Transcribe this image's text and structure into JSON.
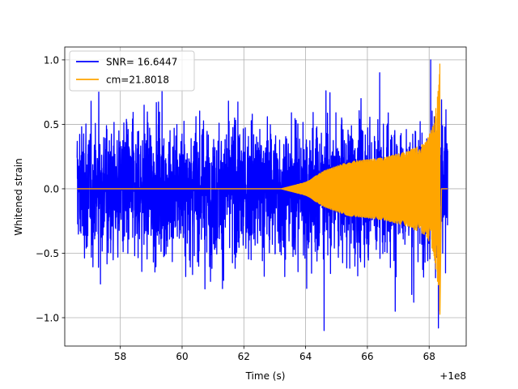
{
  "chart_data": {
    "type": "line",
    "title": "",
    "xlabel": "Time (s)",
    "ylabel": "Whitened strain",
    "x_offset_label": "+1e8",
    "xlim": [
      56.2,
      69.2
    ],
    "ylim": [
      -1.22,
      1.1
    ],
    "x_ticks": [
      58,
      60,
      62,
      64,
      66,
      68
    ],
    "y_ticks": [
      -1.0,
      -0.5,
      0.0,
      0.5,
      1.0
    ],
    "x_tick_labels": [
      "58",
      "60",
      "62",
      "64",
      "66",
      "68"
    ],
    "y_tick_labels": [
      "−1.0",
      "−0.5",
      "0.0",
      "0.5",
      "1.0"
    ],
    "grid": true,
    "legend_position": "top-left",
    "series": [
      {
        "name": "SNR= 16.6447",
        "color": "#0000ff",
        "style": "noisy whitened strain",
        "x_range": [
          56.6,
          68.6
        ],
        "typical_amplitude": 0.45,
        "peaks": [
          {
            "x": 64.6,
            "y": -1.1
          },
          {
            "x": 68.05,
            "y": 1.0
          },
          {
            "x": 68.3,
            "y": -1.08
          },
          {
            "x": 57.3,
            "y": 0.75
          },
          {
            "x": 66.4,
            "y": 0.9
          },
          {
            "x": 66.9,
            "y": -0.95
          },
          {
            "x": 67.5,
            "y": -0.88
          }
        ]
      },
      {
        "name": "cm=21.8018",
        "color": "#ffa500",
        "style": "chirp template",
        "x_range": [
          56.6,
          68.6
        ],
        "merger_time": 68.35,
        "envelope": [
          {
            "x": 56.6,
            "y": 0.0
          },
          {
            "x": 63.2,
            "y": 0.0
          },
          {
            "x": 64.0,
            "y": 0.05
          },
          {
            "x": 64.6,
            "y": 0.14
          },
          {
            "x": 65.4,
            "y": 0.21
          },
          {
            "x": 66.5,
            "y": 0.24
          },
          {
            "x": 67.3,
            "y": 0.29
          },
          {
            "x": 67.9,
            "y": 0.36
          },
          {
            "x": 68.15,
            "y": 0.5
          },
          {
            "x": 68.3,
            "y": 0.78
          },
          {
            "x": 68.35,
            "y": 1.0
          },
          {
            "x": 68.4,
            "y": 0.0
          },
          {
            "x": 68.6,
            "y": 0.0
          }
        ]
      }
    ]
  }
}
